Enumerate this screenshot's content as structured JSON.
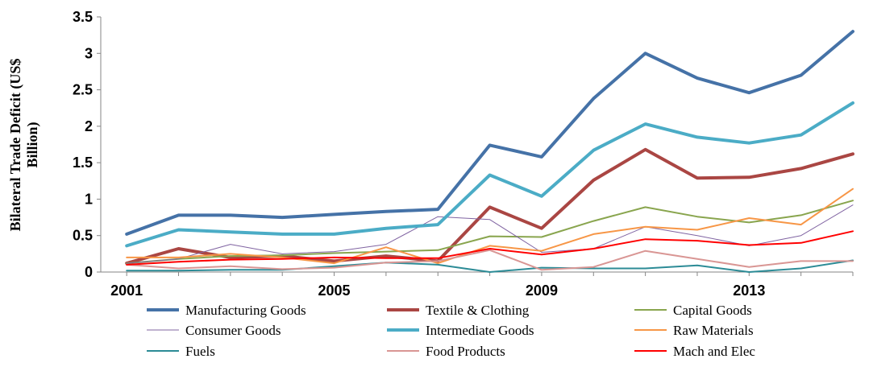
{
  "chart_data": {
    "type": "line",
    "title": "",
    "xlabel": "",
    "ylabel": [
      "Bilateral Trade Deficit (US$",
      "Billion)"
    ],
    "x": [
      2001,
      2002,
      2003,
      2004,
      2005,
      2006,
      2007,
      2008,
      2009,
      2010,
      2011,
      2012,
      2013,
      2014,
      2015
    ],
    "x_ticks": [
      "2001",
      "2005",
      "2009",
      "2013"
    ],
    "y_ticks": [
      "0",
      "0.5",
      "1",
      "1.5",
      "2",
      "2.5",
      "3",
      "3.5"
    ],
    "ylim": [
      0,
      3.5
    ],
    "grid": false,
    "legend_position": "bottom",
    "series": [
      {
        "name": "Manufacturing Goods",
        "color": "#4572A7",
        "width": 4,
        "values": [
          0.52,
          0.78,
          0.78,
          0.75,
          0.79,
          0.83,
          0.86,
          1.74,
          1.58,
          2.38,
          3.0,
          2.66,
          2.46,
          2.7,
          3.3
        ]
      },
      {
        "name": "Textile & Clothing",
        "color": "#AA4643",
        "width": 4,
        "values": [
          0.12,
          0.32,
          0.2,
          0.22,
          0.15,
          0.22,
          0.15,
          0.89,
          0.6,
          1.26,
          1.68,
          1.29,
          1.3,
          1.42,
          1.62
        ]
      },
      {
        "name": "Capital Goods",
        "color": "#89A54E",
        "width": 2,
        "values": [
          0.12,
          0.18,
          0.22,
          0.23,
          0.26,
          0.28,
          0.3,
          0.49,
          0.48,
          0.7,
          0.89,
          0.76,
          0.68,
          0.78,
          0.98
        ]
      },
      {
        "name": "Consumer Goods",
        "color": "#8064A2",
        "width": 1,
        "values": [
          0.12,
          0.18,
          0.38,
          0.25,
          0.28,
          0.38,
          0.76,
          0.72,
          0.27,
          0.32,
          0.62,
          0.5,
          0.36,
          0.5,
          0.92
        ]
      },
      {
        "name": "Intermediate Goods",
        "color": "#4BACC6",
        "width": 4,
        "values": [
          0.36,
          0.58,
          0.55,
          0.52,
          0.52,
          0.6,
          0.65,
          1.33,
          1.04,
          1.67,
          2.03,
          1.85,
          1.77,
          1.88,
          2.32
        ]
      },
      {
        "name": "Raw Materials",
        "color": "#F79646",
        "width": 2,
        "values": [
          0.2,
          0.2,
          0.25,
          0.2,
          0.12,
          0.34,
          0.12,
          0.36,
          0.29,
          0.52,
          0.62,
          0.58,
          0.74,
          0.65,
          1.14
        ]
      },
      {
        "name": "Fuels",
        "color": "#2C8B96",
        "width": 2,
        "values": [
          0.02,
          0.02,
          0.03,
          0.03,
          0.08,
          0.13,
          0.1,
          0.0,
          0.06,
          0.05,
          0.05,
          0.09,
          0.0,
          0.05,
          0.16
        ]
      },
      {
        "name": "Food Products",
        "color": "#D99694",
        "width": 2,
        "values": [
          0.1,
          0.05,
          0.08,
          0.04,
          0.06,
          0.13,
          0.15,
          0.3,
          0.03,
          0.07,
          0.29,
          0.18,
          0.07,
          0.15,
          0.15
        ]
      },
      {
        "name": "Mach and Elec",
        "color": "#FF0000",
        "width": 2,
        "values": [
          0.1,
          0.14,
          0.17,
          0.18,
          0.2,
          0.19,
          0.19,
          0.32,
          0.24,
          0.32,
          0.45,
          0.43,
          0.37,
          0.4,
          0.56
        ]
      }
    ]
  }
}
